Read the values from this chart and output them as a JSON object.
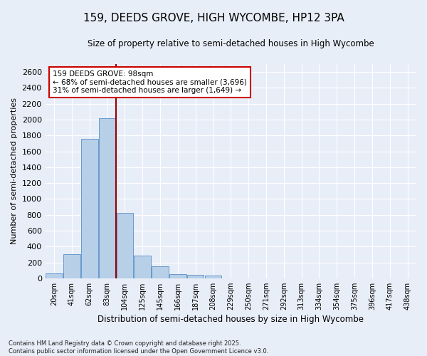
{
  "title1": "159, DEEDS GROVE, HIGH WYCOMBE, HP12 3PA",
  "title2": "Size of property relative to semi-detached houses in High Wycombe",
  "xlabel": "Distribution of semi-detached houses by size in High Wycombe",
  "ylabel": "Number of semi-detached properties",
  "categories": [
    "20sqm",
    "41sqm",
    "62sqm",
    "83sqm",
    "104sqm",
    "125sqm",
    "145sqm",
    "166sqm",
    "187sqm",
    "208sqm",
    "229sqm",
    "250sqm",
    "271sqm",
    "292sqm",
    "313sqm",
    "334sqm",
    "354sqm",
    "375sqm",
    "396sqm",
    "417sqm",
    "438sqm"
  ],
  "values": [
    60,
    300,
    1760,
    2020,
    820,
    290,
    155,
    55,
    45,
    35,
    0,
    0,
    0,
    0,
    0,
    0,
    0,
    0,
    0,
    0,
    0
  ],
  "bar_color": "#b8cfe8",
  "bar_edge_color": "#6699cc",
  "background_color": "#e8eef8",
  "grid_color": "#ffffff",
  "vline_color": "#990000",
  "annotation_text": "159 DEEDS GROVE: 98sqm\n← 68% of semi-detached houses are smaller (3,696)\n31% of semi-detached houses are larger (1,649) →",
  "annotation_box_color": "white",
  "annotation_box_edge": "#cc0000",
  "ylim": [
    0,
    2700
  ],
  "yticks": [
    0,
    200,
    400,
    600,
    800,
    1000,
    1200,
    1400,
    1600,
    1800,
    2000,
    2200,
    2400,
    2600
  ],
  "footnote": "Contains HM Land Registry data © Crown copyright and database right 2025.\nContains public sector information licensed under the Open Government Licence v3.0."
}
